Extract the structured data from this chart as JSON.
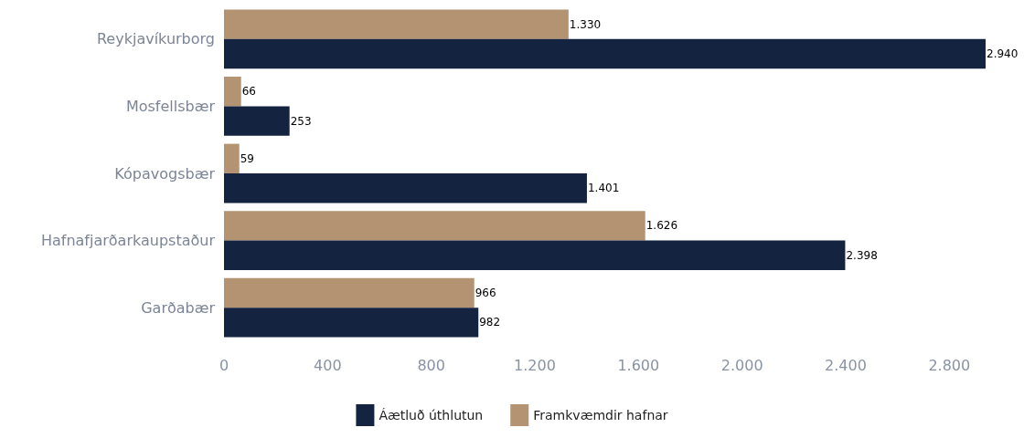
{
  "chart_data": {
    "type": "bar",
    "orientation": "horizontal",
    "categories": [
      "Reykjavíkurborg",
      "Mosfellsbær",
      "Kópavogsbær",
      "Hafnafjarðarkaupstaður",
      "Garðabær"
    ],
    "series": [
      {
        "name": "Áætluð úthlutun",
        "color": "#14233f",
        "values": [
          2940,
          253,
          1401,
          2398,
          982
        ],
        "value_labels": [
          "2.940",
          "253",
          "1.401",
          "2.398",
          "982"
        ]
      },
      {
        "name": "Framkvæmdir hafnar",
        "color": "#b39371",
        "values": [
          1330,
          66,
          59,
          1626,
          966
        ],
        "value_labels": [
          "1.330",
          "66",
          "59",
          "1.626",
          "966"
        ]
      }
    ],
    "xlim": [
      0,
      2940
    ],
    "xticks": [
      0,
      400,
      800,
      {
        "value": 1200,
        "label": "1.200"
      },
      {
        "value": 1600,
        "label": "1.600"
      },
      {
        "value": 2000,
        "label": "2.000"
      },
      {
        "value": 2400,
        "label": "2.400"
      },
      {
        "value": 2800,
        "label": "2.800"
      }
    ],
    "grid": false,
    "legend": "bottom"
  }
}
